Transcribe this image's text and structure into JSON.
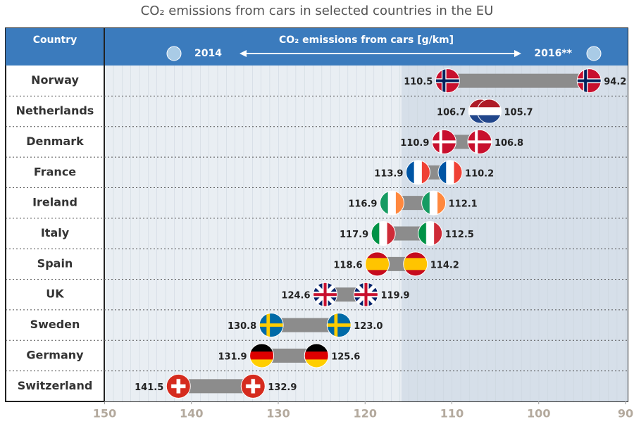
{
  "chart_data": {
    "type": "dumbbell",
    "title": "CO₂ emissions from cars in selected countries in the EU",
    "category_header": "Country",
    "value_header": "CO₂ emissions from cars [g/km]",
    "categories": [
      "Norway",
      "Netherlands",
      "Denmark",
      "France",
      "Ireland",
      "Italy",
      "Spain",
      "UK",
      "Sweden",
      "Germany",
      "Switzerland"
    ],
    "series": [
      {
        "name": "2014",
        "color": "#a9cbe6",
        "values": [
          110.5,
          106.7,
          110.9,
          113.9,
          116.9,
          117.9,
          118.6,
          124.6,
          130.8,
          131.9,
          141.5
        ],
        "value_labels": [
          "110.5",
          "106.7",
          "110.9",
          "113.9",
          "116.9",
          "117.9",
          "118.6",
          "124.6",
          "130.8",
          "131.9",
          "141.5"
        ]
      },
      {
        "name": "2016**",
        "color": "#a9cbe6",
        "values": [
          94.2,
          105.7,
          106.8,
          110.2,
          112.1,
          112.5,
          114.2,
          119.9,
          123.0,
          125.6,
          132.9
        ],
        "value_labels": [
          "94.2",
          "105.7",
          "106.8",
          "110.2",
          "112.1",
          "112.5",
          "114.2",
          "119.9",
          "123.0",
          "125.6",
          "132.9"
        ]
      }
    ],
    "connector_color": "#8c8c8c",
    "xlim": [
      150,
      90
    ],
    "xticks": [
      150,
      140,
      130,
      120,
      110,
      100,
      90
    ]
  }
}
